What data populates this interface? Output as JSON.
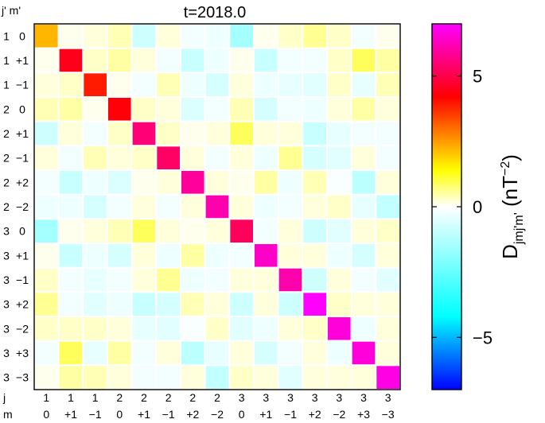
{
  "chart_data": {
    "type": "heatmap",
    "title": "t=2018.0",
    "corner_label": "j' m'",
    "row_labels": [
      {
        "j": "1",
        "m": "0"
      },
      {
        "j": "1",
        "m": "+1"
      },
      {
        "j": "1",
        "m": "−1"
      },
      {
        "j": "2",
        "m": "0"
      },
      {
        "j": "2",
        "m": "+1"
      },
      {
        "j": "2",
        "m": "−1"
      },
      {
        "j": "2",
        "m": "+2"
      },
      {
        "j": "2",
        "m": "−2"
      },
      {
        "j": "3",
        "m": "0"
      },
      {
        "j": "3",
        "m": "+1"
      },
      {
        "j": "3",
        "m": "−1"
      },
      {
        "j": "3",
        "m": "+2"
      },
      {
        "j": "3",
        "m": "−2"
      },
      {
        "j": "3",
        "m": "+3"
      },
      {
        "j": "3",
        "m": "−3"
      }
    ],
    "x_axis_row_titles": {
      "j": "j",
      "m": "m"
    },
    "col_labels_j": [
      "1",
      "1",
      "1",
      "2",
      "2",
      "2",
      "2",
      "2",
      "3",
      "3",
      "3",
      "3",
      "3",
      "3",
      "3"
    ],
    "col_labels_m": [
      "0",
      "+1",
      "−1",
      "0",
      "+1",
      "−1",
      "+2",
      "−2",
      "0",
      "+1",
      "−1",
      "+2",
      "−2",
      "+3",
      "−3"
    ],
    "matrix": [
      [
        2.2,
        0.1,
        0.2,
        0.4,
        -0.8,
        0.2,
        -0.2,
        -0.3,
        -1.5,
        0.1,
        0.3,
        0.6,
        0.3,
        -0.2,
        0.1
      ],
      [
        0.1,
        4.5,
        0.3,
        0.5,
        0.2,
        -0.2,
        -0.9,
        -0.3,
        0.1,
        -0.9,
        -0.2,
        -0.2,
        0.3,
        0.9,
        0.5
      ],
      [
        0.2,
        0.3,
        3.9,
        0.1,
        -0.2,
        0.4,
        -0.3,
        -0.7,
        0.2,
        -0.3,
        -0.4,
        -0.5,
        0.3,
        -0.4,
        0.4
      ],
      [
        0.4,
        0.5,
        0.1,
        4.3,
        0.3,
        0.2,
        -0.6,
        -0.2,
        0.4,
        -0.7,
        -0.2,
        -0.3,
        0.2,
        0.5,
        0.2
      ],
      [
        -0.8,
        0.2,
        -0.2,
        0.3,
        5.5,
        0.3,
        0.1,
        0.2,
        0.9,
        0.2,
        0.2,
        -0.9,
        -0.4,
        -0.2,
        -0.2
      ],
      [
        0.2,
        -0.2,
        0.4,
        0.2,
        0.3,
        5.3,
        0.2,
        -0.2,
        0.2,
        -0.3,
        0.6,
        -0.7,
        -0.5,
        0.2,
        -0.2
      ],
      [
        -0.2,
        -0.9,
        -0.3,
        -0.6,
        0.1,
        0.2,
        5.9,
        0.2,
        0.1,
        0.5,
        -0.3,
        0.4,
        -0.1,
        -1.1,
        0.2
      ],
      [
        -0.3,
        -0.3,
        -0.7,
        -0.2,
        0.2,
        -0.2,
        0.2,
        6.1,
        0.2,
        -0.3,
        -0.2,
        0.2,
        0.3,
        -0.4,
        -1.0
      ],
      [
        -1.5,
        0.1,
        0.2,
        0.4,
        0.9,
        0.2,
        0.1,
        0.2,
        5.2,
        -0.2,
        0.2,
        -0.8,
        -0.5,
        0.2,
        0.3
      ],
      [
        0.1,
        -0.9,
        -0.3,
        -0.7,
        0.2,
        -0.3,
        0.5,
        -0.3,
        -0.2,
        6.4,
        0.2,
        0.2,
        -0.3,
        -0.7,
        0.2
      ],
      [
        0.3,
        -0.2,
        -0.4,
        -0.2,
        0.2,
        0.6,
        -0.3,
        -0.2,
        0.2,
        0.2,
        6.1,
        -0.8,
        0.2,
        -0.2,
        -0.5
      ],
      [
        0.6,
        -0.2,
        -0.5,
        -0.3,
        -0.9,
        -0.7,
        0.4,
        0.2,
        -0.8,
        0.2,
        -0.8,
        7.0,
        0.3,
        0.2,
        0.2
      ],
      [
        0.3,
        0.3,
        0.3,
        0.2,
        -0.4,
        -0.5,
        -0.1,
        0.3,
        -0.5,
        -0.3,
        0.2,
        0.3,
        6.6,
        -0.3,
        0.2
      ],
      [
        -0.2,
        0.9,
        -0.4,
        0.5,
        -0.2,
        0.2,
        -1.1,
        -0.4,
        0.2,
        -0.7,
        -0.2,
        0.2,
        -0.3,
        6.6,
        0.2
      ],
      [
        0.1,
        0.5,
        0.4,
        0.2,
        -0.2,
        -0.2,
        0.2,
        -1.0,
        0.3,
        0.2,
        -0.5,
        0.2,
        0.2,
        0.2,
        6.7
      ]
    ],
    "colorbar": {
      "min": -7,
      "max": 7,
      "ticks": [
        {
          "value": 5,
          "label": "5"
        },
        {
          "value": 0,
          "label": "0"
        },
        {
          "value": -5,
          "label": "−5"
        }
      ],
      "label_main": "D",
      "label_sub": "jmj'm'",
      "label_unit_open": " (nT",
      "label_unit_sup": "−2",
      "label_unit_close": ")"
    },
    "colors": {
      "stops": [
        "#0000ff",
        "#00ffff",
        "#ffffff",
        "#ffff00",
        "#ff0000",
        "#ff00ff"
      ],
      "grid_line": "#ffffff",
      "frame": "#000000"
    }
  }
}
